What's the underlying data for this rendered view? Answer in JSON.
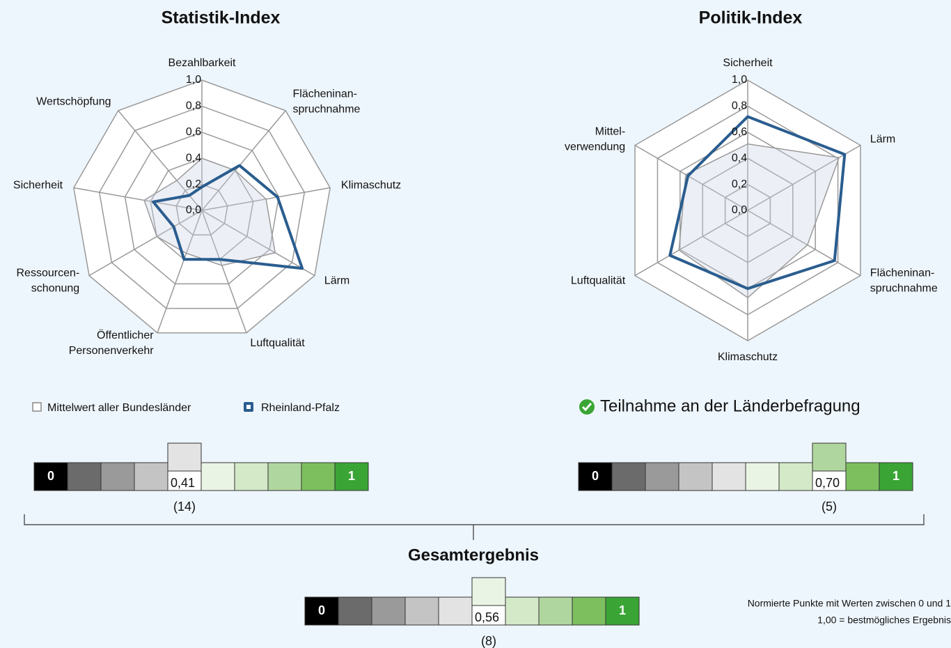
{
  "chart_data": [
    {
      "type": "radar",
      "title": "Statistik-Index",
      "categories": [
        [
          "Bezahlbarkeit"
        ],
        [
          "Flächeninan-",
          "spruchnahme"
        ],
        [
          "Klimaschutz"
        ],
        [
          "Lärm"
        ],
        [
          "Luftqualität"
        ],
        [
          "Öffentlicher",
          "Personenverkehr"
        ],
        [
          "Ressourcen-",
          "schonung"
        ],
        [
          "Sicherheit"
        ],
        [
          "Wertschöpfung"
        ]
      ],
      "series": [
        {
          "name": "Mittelwert aller Bundesländer",
          "color": "#9a9a9a",
          "values": [
            0.4,
            0.4,
            0.5,
            0.65,
            0.45,
            0.35,
            0.4,
            0.45,
            0.3
          ]
        },
        {
          "name": "Rheinland-Pfalz",
          "color": "#2a5d8f",
          "values": [
            0.18,
            0.45,
            0.59,
            0.89,
            0.4,
            0.4,
            0.25,
            0.38,
            0.15
          ]
        }
      ],
      "ylim": [
        0,
        1
      ],
      "yticks": [
        {
          "value": 0,
          "label": "0,0"
        },
        {
          "value": 0.2,
          "label": "0,2"
        },
        {
          "value": 0.4,
          "label": "0,4"
        },
        {
          "value": 0.6,
          "label": "0,6"
        },
        {
          "value": 0.8,
          "label": "0,8"
        },
        {
          "value": 1,
          "label": "1,0"
        }
      ]
    },
    {
      "type": "radar",
      "title": "Politik-Index",
      "categories": [
        [
          "Sicherheit"
        ],
        [
          "Lärm"
        ],
        [
          "Flächeninan-",
          "spruchnahme"
        ],
        [
          "Klimaschutz"
        ],
        [
          "Luftqualität"
        ],
        [
          "Mittel-",
          "verwendung"
        ]
      ],
      "series": [
        {
          "name": "Mittelwert aller Bundesländer",
          "color": "#9a9a9a",
          "values": [
            0.51,
            0.81,
            0.53,
            0.67,
            0.61,
            0.55
          ]
        },
        {
          "name": "Rheinland-Pfalz",
          "color": "#2a5d8f",
          "values": [
            0.72,
            0.86,
            0.77,
            0.6,
            0.69,
            0.53
          ]
        }
      ],
      "ylim": [
        0,
        1
      ],
      "yticks": [
        {
          "value": 0,
          "label": "0,0"
        },
        {
          "value": 0.2,
          "label": "0,2"
        },
        {
          "value": 0.4,
          "label": "0,4"
        },
        {
          "value": 0.6,
          "label": "0,6"
        },
        {
          "value": 0.8,
          "label": "0,8"
        },
        {
          "value": 1,
          "label": "1,0"
        }
      ]
    }
  ],
  "participation": "Teilnahme an der Länderbefragung",
  "scale_colors": [
    "#000000",
    "#6b6b6b",
    "#9a9a9a",
    "#c4c4c4",
    "#e3e3e3",
    "#eaf4e4",
    "#d3e9c8",
    "#b0d69f",
    "#7dbf5f",
    "#3aa535"
  ],
  "scale_ends": [
    0,
    1
  ],
  "scores": [
    {
      "value": 0.41,
      "value_label": "0,41",
      "rank": 14,
      "rank_label": "(14)"
    },
    {
      "value": 0.7,
      "value_label": "0,70",
      "rank": 5,
      "rank_label": "(5)"
    },
    {
      "title": "Gesamtergebnis",
      "value": 0.56,
      "value_label": "0,56",
      "rank": 8,
      "rank_label": "(8)"
    }
  ],
  "note": [
    "Normierte Punkte mit Werten zwischen 0 und 1",
    "1,00 = bestmögliches Ergebnis"
  ]
}
